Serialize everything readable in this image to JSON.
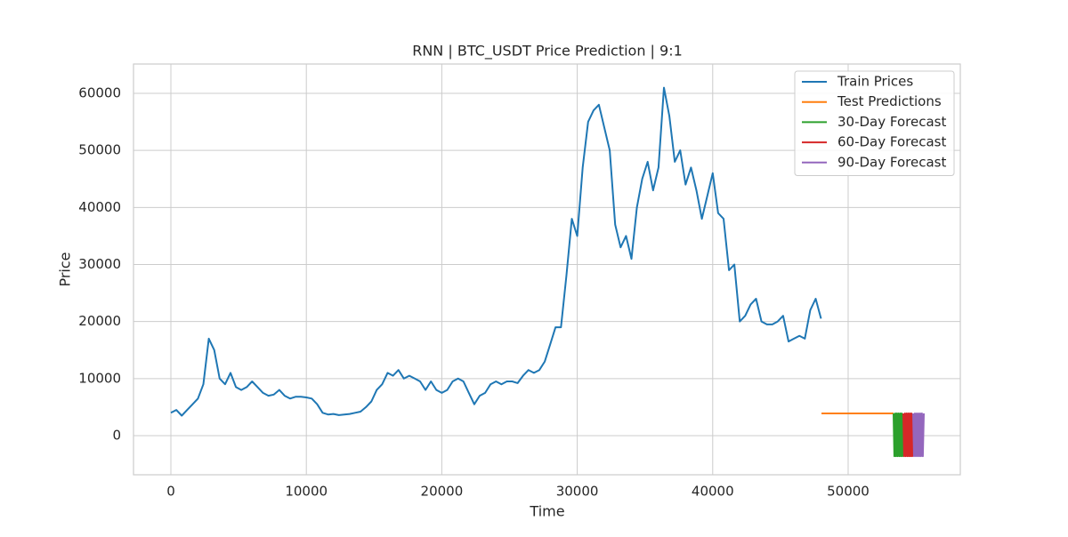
{
  "chart_data": {
    "type": "line",
    "title": "RNN | BTC_USDT Price Prediction | 9:1",
    "x_label": "Time",
    "y_label": "Price",
    "xlim": [
      -2760,
      58280
    ],
    "ylim": [
      -6860,
      65140
    ],
    "xticks": [
      0,
      10000,
      20000,
      30000,
      40000,
      50000
    ],
    "yticks": [
      0,
      10000,
      20000,
      30000,
      40000,
      50000,
      60000
    ],
    "grid": true,
    "legend": "upper right",
    "series": [
      {
        "name": "Train Prices",
        "color": "#1f77b4",
        "x": [
          0,
          400,
          800,
          1200,
          1600,
          2000,
          2400,
          2800,
          3200,
          3600,
          4000,
          4400,
          4800,
          5200,
          5600,
          6000,
          6400,
          6800,
          7200,
          7600,
          8000,
          8400,
          8800,
          9200,
          9600,
          10000,
          10400,
          10800,
          11200,
          11600,
          12000,
          12400,
          12800,
          13200,
          13600,
          14000,
          14400,
          14800,
          15200,
          15600,
          16000,
          16400,
          16800,
          17200,
          17600,
          18000,
          18400,
          18800,
          19200,
          19600,
          20000,
          20400,
          20800,
          21200,
          21600,
          22000,
          22400,
          22800,
          23200,
          23600,
          24000,
          24400,
          24800,
          25200,
          25600,
          26000,
          26400,
          26800,
          27200,
          27600,
          28000,
          28400,
          28800,
          29200,
          29600,
          30000,
          30400,
          30800,
          31200,
          31600,
          32000,
          32400,
          32800,
          33200,
          33600,
          34000,
          34400,
          34800,
          35200,
          35600,
          36000,
          36400,
          36800,
          37200,
          37600,
          38000,
          38400,
          38800,
          39200,
          39600,
          40000,
          40400,
          40800,
          41200,
          41600,
          42000,
          42400,
          42800,
          43200,
          43600,
          44000,
          44400,
          44800,
          45200,
          45600,
          46000,
          46400,
          46800,
          47200,
          47600,
          48000
        ],
        "values": [
          4000,
          4500,
          3500,
          4500,
          5500,
          6500,
          9000,
          17000,
          15000,
          10000,
          9000,
          11000,
          8500,
          8000,
          8500,
          9500,
          8500,
          7500,
          7000,
          7200,
          8000,
          7000,
          6500,
          6800,
          6800,
          6700,
          6500,
          5500,
          4000,
          3700,
          3800,
          3600,
          3700,
          3800,
          4000,
          4200,
          5000,
          6000,
          8000,
          9000,
          11000,
          10500,
          11500,
          10000,
          10500,
          10000,
          9500,
          8000,
          9500,
          8000,
          7500,
          8000,
          9500,
          10000,
          9500,
          7500,
          5500,
          7000,
          7500,
          9000,
          9500,
          9000,
          9500,
          9500,
          9200,
          10500,
          11500,
          11000,
          11500,
          13000,
          16000,
          19000,
          19000,
          28000,
          38000,
          35000,
          47000,
          55000,
          57000,
          58000,
          54000,
          50000,
          37000,
          33000,
          35000,
          31000,
          40000,
          45000,
          48000,
          43000,
          47000,
          61000,
          56000,
          48000,
          50000,
          44000,
          47000,
          43000,
          38000,
          42000,
          46000,
          39000,
          38000,
          29000,
          30000,
          20000,
          21000,
          23000,
          24000,
          20000,
          19500,
          19500,
          20000,
          21000,
          16500,
          17000,
          17500,
          17000,
          22000,
          24000,
          20500
        ]
      },
      {
        "name": "Test Predictions",
        "color": "#ff7f0e",
        "x": [
          48030,
          53350
        ],
        "values": [
          3900,
          3900
        ]
      },
      {
        "name": "30-Day Forecast",
        "color": "#2ca02c",
        "x": [
          53350,
          53410,
          53470,
          53530,
          53590,
          53650,
          53710,
          53770,
          53830,
          53890,
          53950,
          54010,
          54075
        ],
        "values": [
          3900,
          -3600,
          3900,
          -3600,
          3900,
          -3600,
          3900,
          -3600,
          3900,
          -3600,
          3900,
          -3600,
          3900
        ]
      },
      {
        "name": "60-Day Forecast",
        "color": "#d62728",
        "x": [
          54075,
          54135,
          54195,
          54255,
          54315,
          54375,
          54435,
          54495,
          54555,
          54615,
          54675,
          54735,
          54800
        ],
        "values": [
          3900,
          -3600,
          3900,
          -3600,
          3900,
          -3600,
          3900,
          -3600,
          3900,
          -3600,
          3900,
          -3600,
          3900
        ]
      },
      {
        "name": "90-Day Forecast",
        "color": "#9467bd",
        "x": [
          54800,
          54865,
          54930,
          54995,
          55060,
          55125,
          55190,
          55255,
          55320,
          55385,
          55450,
          55515,
          55585
        ],
        "values": [
          3900,
          -3600,
          3900,
          -3600,
          3900,
          -3600,
          3900,
          -3600,
          3900,
          -3600,
          3900,
          -3600,
          3900
        ]
      }
    ]
  }
}
